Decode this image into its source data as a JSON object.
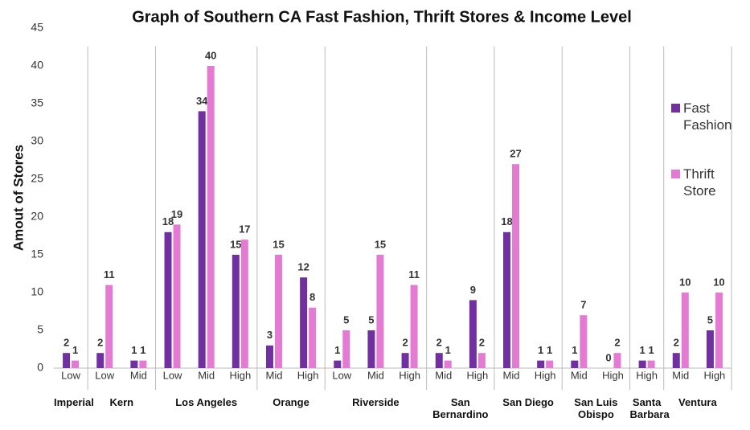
{
  "chart_data": {
    "type": "bar",
    "title": "Graph of Southern CA Fast Fashion, Thrift Stores & Income Level",
    "y_label": "Amout of Stores",
    "groups": [
      {
        "name": "Imperial",
        "categories": [
          "Low"
        ]
      },
      {
        "name": "Kern",
        "categories": [
          "Low",
          "Mid"
        ]
      },
      {
        "name": "Los Angeles",
        "categories": [
          "Low",
          "Mid",
          "High"
        ]
      },
      {
        "name": "Orange",
        "categories": [
          "Mid",
          "High"
        ]
      },
      {
        "name": "Riverside",
        "categories": [
          "Low",
          "Mid",
          "High"
        ]
      },
      {
        "name": "San Bernardino",
        "categories": [
          "Mid",
          "High"
        ]
      },
      {
        "name": "San Diego",
        "categories": [
          "Mid",
          "High"
        ]
      },
      {
        "name": "San Luis Obispo",
        "categories": [
          "Mid",
          "High"
        ]
      },
      {
        "name": "Santa Barbara",
        "categories": [
          "High"
        ]
      },
      {
        "name": "Ventura",
        "categories": [
          "Mid",
          "High"
        ]
      }
    ],
    "series": [
      {
        "name": "Fast Fashion",
        "color": "#7030a0",
        "values": [
          2,
          2,
          1,
          18,
          34,
          15,
          3,
          12,
          1,
          5,
          2,
          2,
          9,
          18,
          1,
          1,
          0,
          1,
          2,
          5
        ]
      },
      {
        "name": "Thrift Store",
        "color": "#e27bd1",
        "values": [
          1,
          11,
          1,
          19,
          40,
          17,
          15,
          8,
          5,
          15,
          11,
          1,
          2,
          27,
          1,
          7,
          2,
          1,
          10,
          10
        ]
      }
    ],
    "ylim": [
      0,
      45
    ],
    "yticks": [
      0,
      5,
      10,
      15,
      20,
      25,
      30,
      35,
      40,
      45
    ],
    "grid": false,
    "legend": "right"
  }
}
